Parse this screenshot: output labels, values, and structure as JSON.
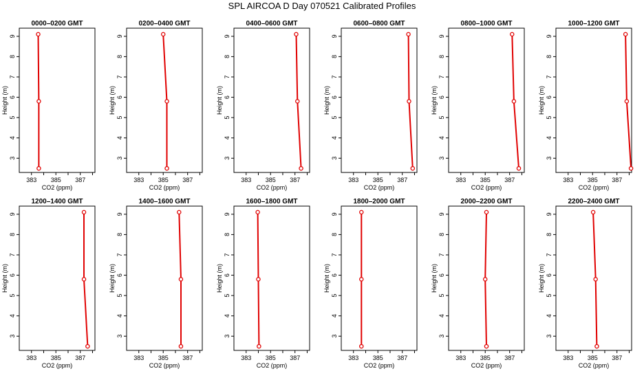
{
  "title": "SPL AIRCOA D  Day 070521  Calibrated Profiles",
  "colors": {
    "line": "#e00000",
    "axis": "#000000",
    "background": "#ffffff"
  },
  "chart_data": [
    {
      "type": "line",
      "title": "0000–0200 GMT",
      "xlabel": "CO2 (ppm)",
      "ylabel": "Height (m)",
      "xlim": [
        382.0,
        388.2
      ],
      "ylim": [
        2.3,
        9.4
      ],
      "xticks": [
        383,
        384,
        385,
        386,
        387,
        388
      ],
      "xtick_labels": [
        "383",
        "",
        "385",
        "",
        "387",
        ""
      ],
      "yticks": [
        3,
        4,
        5,
        6,
        7,
        8,
        9
      ],
      "points": [
        {
          "x": 383.55,
          "y": 9.1
        },
        {
          "x": 383.6,
          "y": 5.8
        },
        {
          "x": 383.6,
          "y": 2.5
        }
      ]
    },
    {
      "type": "line",
      "title": "0200–0400 GMT",
      "xlabel": "CO2 (ppm)",
      "ylabel": "Height (m)",
      "xlim": [
        382.0,
        388.2
      ],
      "ylim": [
        2.3,
        9.4
      ],
      "xticks": [
        383,
        384,
        385,
        386,
        387,
        388
      ],
      "xtick_labels": [
        "383",
        "",
        "385",
        "",
        "387",
        ""
      ],
      "yticks": [
        3,
        4,
        5,
        6,
        7,
        8,
        9
      ],
      "points": [
        {
          "x": 385.0,
          "y": 9.1
        },
        {
          "x": 385.3,
          "y": 5.8
        },
        {
          "x": 385.3,
          "y": 2.5
        }
      ]
    },
    {
      "type": "line",
      "title": "0400–0600 GMT",
      "xlabel": "CO2 (ppm)",
      "ylabel": "Height (m)",
      "xlim": [
        382.0,
        388.2
      ],
      "ylim": [
        2.3,
        9.4
      ],
      "xticks": [
        383,
        384,
        385,
        386,
        387,
        388
      ],
      "xtick_labels": [
        "383",
        "",
        "385",
        "",
        "387",
        ""
      ],
      "yticks": [
        3,
        4,
        5,
        6,
        7,
        8,
        9
      ],
      "points": [
        {
          "x": 387.1,
          "y": 9.1
        },
        {
          "x": 387.2,
          "y": 5.8
        },
        {
          "x": 387.5,
          "y": 2.5
        }
      ]
    },
    {
      "type": "line",
      "title": "0600–0800 GMT",
      "xlabel": "CO2 (ppm)",
      "ylabel": "Height (m)",
      "xlim": [
        382.0,
        388.2
      ],
      "ylim": [
        2.3,
        9.4
      ],
      "xticks": [
        383,
        384,
        385,
        386,
        387,
        388
      ],
      "xtick_labels": [
        "383",
        "",
        "385",
        "",
        "387",
        ""
      ],
      "yticks": [
        3,
        4,
        5,
        6,
        7,
        8,
        9
      ],
      "points": [
        {
          "x": 387.5,
          "y": 9.1
        },
        {
          "x": 387.55,
          "y": 5.8
        },
        {
          "x": 387.85,
          "y": 2.5
        }
      ]
    },
    {
      "type": "line",
      "title": "0800–1000 GMT",
      "xlabel": "CO2 (ppm)",
      "ylabel": "Height (m)",
      "xlim": [
        382.0,
        388.2
      ],
      "ylim": [
        2.3,
        9.4
      ],
      "xticks": [
        383,
        384,
        385,
        386,
        387,
        388
      ],
      "xtick_labels": [
        "383",
        "",
        "385",
        "",
        "387",
        ""
      ],
      "yticks": [
        3,
        4,
        5,
        6,
        7,
        8,
        9
      ],
      "points": [
        {
          "x": 387.2,
          "y": 9.1
        },
        {
          "x": 387.35,
          "y": 5.8
        },
        {
          "x": 387.75,
          "y": 2.5
        }
      ]
    },
    {
      "type": "line",
      "title": "1000–1200 GMT",
      "xlabel": "CO2 (ppm)",
      "ylabel": "Height (m)",
      "xlim": [
        382.0,
        388.2
      ],
      "ylim": [
        2.3,
        9.4
      ],
      "xticks": [
        383,
        384,
        385,
        386,
        387,
        388
      ],
      "xtick_labels": [
        "383",
        "",
        "385",
        "",
        "387",
        ""
      ],
      "yticks": [
        3,
        4,
        5,
        6,
        7,
        8,
        9
      ],
      "points": [
        {
          "x": 387.7,
          "y": 9.1
        },
        {
          "x": 387.8,
          "y": 5.8
        },
        {
          "x": 388.15,
          "y": 2.5
        }
      ]
    },
    {
      "type": "line",
      "title": "1200–1400 GMT",
      "xlabel": "CO2 (ppm)",
      "ylabel": "Height (m)",
      "xlim": [
        382.0,
        388.2
      ],
      "ylim": [
        2.3,
        9.4
      ],
      "xticks": [
        383,
        384,
        385,
        386,
        387,
        388
      ],
      "xtick_labels": [
        "383",
        "",
        "385",
        "",
        "387",
        ""
      ],
      "yticks": [
        3,
        4,
        5,
        6,
        7,
        8,
        9
      ],
      "points": [
        {
          "x": 387.3,
          "y": 9.1
        },
        {
          "x": 387.3,
          "y": 5.8
        },
        {
          "x": 387.6,
          "y": 2.5
        }
      ]
    },
    {
      "type": "line",
      "title": "1400–1600 GMT",
      "xlabel": "CO2 (ppm)",
      "ylabel": "Height (m)",
      "xlim": [
        382.0,
        388.2
      ],
      "ylim": [
        2.3,
        9.4
      ],
      "xticks": [
        383,
        384,
        385,
        386,
        387,
        388
      ],
      "xtick_labels": [
        "383",
        "",
        "385",
        "",
        "387",
        ""
      ],
      "yticks": [
        3,
        4,
        5,
        6,
        7,
        8,
        9
      ],
      "points": [
        {
          "x": 386.3,
          "y": 9.1
        },
        {
          "x": 386.45,
          "y": 5.8
        },
        {
          "x": 386.45,
          "y": 2.5
        }
      ]
    },
    {
      "type": "line",
      "title": "1600–1800 GMT",
      "xlabel": "CO2 (ppm)",
      "ylabel": "Height (m)",
      "xlim": [
        382.0,
        388.2
      ],
      "ylim": [
        2.3,
        9.4
      ],
      "xticks": [
        383,
        384,
        385,
        386,
        387,
        388
      ],
      "xtick_labels": [
        "383",
        "",
        "385",
        "",
        "387",
        ""
      ],
      "yticks": [
        3,
        4,
        5,
        6,
        7,
        8,
        9
      ],
      "points": [
        {
          "x": 383.95,
          "y": 9.1
        },
        {
          "x": 384.0,
          "y": 5.8
        },
        {
          "x": 384.05,
          "y": 2.5
        }
      ]
    },
    {
      "type": "line",
      "title": "1800–2000 GMT",
      "xlabel": "CO2 (ppm)",
      "ylabel": "Height (m)",
      "xlim": [
        382.0,
        388.2
      ],
      "ylim": [
        2.3,
        9.4
      ],
      "xticks": [
        383,
        384,
        385,
        386,
        387,
        388
      ],
      "xtick_labels": [
        "383",
        "",
        "385",
        "",
        "387",
        ""
      ],
      "yticks": [
        3,
        4,
        5,
        6,
        7,
        8,
        9
      ],
      "points": [
        {
          "x": 383.65,
          "y": 9.1
        },
        {
          "x": 383.65,
          "y": 5.8
        },
        {
          "x": 383.65,
          "y": 2.5
        }
      ]
    },
    {
      "type": "line",
      "title": "2000–2200 GMT",
      "xlabel": "CO2 (ppm)",
      "ylabel": "Height (m)",
      "xlim": [
        382.0,
        388.2
      ],
      "ylim": [
        2.3,
        9.4
      ],
      "xticks": [
        383,
        384,
        385,
        386,
        387,
        388
      ],
      "xtick_labels": [
        "383",
        "",
        "385",
        "",
        "387",
        ""
      ],
      "yticks": [
        3,
        4,
        5,
        6,
        7,
        8,
        9
      ],
      "points": [
        {
          "x": 385.1,
          "y": 9.1
        },
        {
          "x": 385.0,
          "y": 5.8
        },
        {
          "x": 385.1,
          "y": 2.5
        }
      ]
    },
    {
      "type": "line",
      "title": "2200–2400 GMT",
      "xlabel": "CO2 (ppm)",
      "ylabel": "Height (m)",
      "xlim": [
        382.0,
        388.2
      ],
      "ylim": [
        2.3,
        9.4
      ],
      "xticks": [
        383,
        384,
        385,
        386,
        387,
        388
      ],
      "xtick_labels": [
        "383",
        "",
        "385",
        "",
        "387",
        ""
      ],
      "yticks": [
        3,
        4,
        5,
        6,
        7,
        8,
        9
      ],
      "points": [
        {
          "x": 385.05,
          "y": 9.1
        },
        {
          "x": 385.25,
          "y": 5.8
        },
        {
          "x": 385.35,
          "y": 2.5
        }
      ]
    }
  ]
}
